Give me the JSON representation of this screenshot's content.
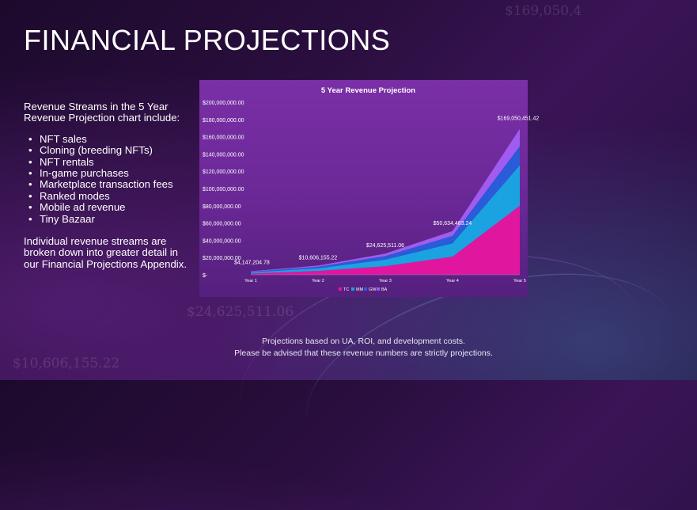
{
  "slide": {
    "title": "FINANCIAL PROJECTIONS",
    "intro": "Revenue Streams in the 5 Year Revenue Projection chart include:",
    "bullets": [
      "NFT sales",
      "Cloning (breeding NFTs)",
      "NFT rentals",
      "In-game purchases",
      "Marketplace transaction fees",
      "Ranked modes",
      "Mobile  ad revenue",
      "Tiny Bazaar"
    ],
    "outro": "Individual revenue streams are broken down into greater detail in our Financial Projections Appendix.",
    "footer_line1": "Projections based on UA, ROI, and development costs.",
    "footer_line2": "Please be advised that these revenue numbers are strictly projections.",
    "background_numbers": [
      "$169,050,4",
      "$24,625,511.06",
      "$10,606,155.22"
    ]
  },
  "chart_data": {
    "type": "area",
    "stacked": true,
    "title": "5 Year Revenue Projection",
    "categories": [
      "Year 1",
      "Year 2",
      "Year 3",
      "Year 4",
      "Year 5"
    ],
    "ylim": [
      0,
      200000000
    ],
    "yticks": [
      "$-",
      "$20,000,000.00",
      "$40,000,000.00",
      "$60,000,000.00",
      "$80,000,000.00",
      "$100,000,000.00",
      "$120,000,000.00",
      "$140,000,000.00",
      "$160,000,000.00",
      "$180,000,000.00",
      "$200,000,000.00"
    ],
    "series": [
      {
        "name": "TC",
        "color": "#e0179e",
        "values": [
          1500000,
          4500000,
          10000000,
          21000000,
          80000000
        ]
      },
      {
        "name": "MM",
        "color": "#1aa3e0",
        "values": [
          1300000,
          3100000,
          7500000,
          15500000,
          47000000
        ]
      },
      {
        "name": "GW",
        "color": "#2a5bd8",
        "values": [
          800000,
          1700000,
          4200000,
          8500000,
          22000000
        ]
      },
      {
        "name": "BA",
        "color": "#a05cf0",
        "values": [
          547204.78,
          1306155.22,
          2925511.06,
          5634483.24,
          20050451.42
        ]
      }
    ],
    "totals": [
      4147204.78,
      10606155.22,
      24625511.06,
      50634483.24,
      169050451.42
    ],
    "data_labels": [
      "$4,147,204.78",
      "$10,606,155.22",
      "$24,625,511.06",
      "$50,634,483.24",
      "$169,050,451.42"
    ],
    "legend": "bottom",
    "grid": false
  }
}
